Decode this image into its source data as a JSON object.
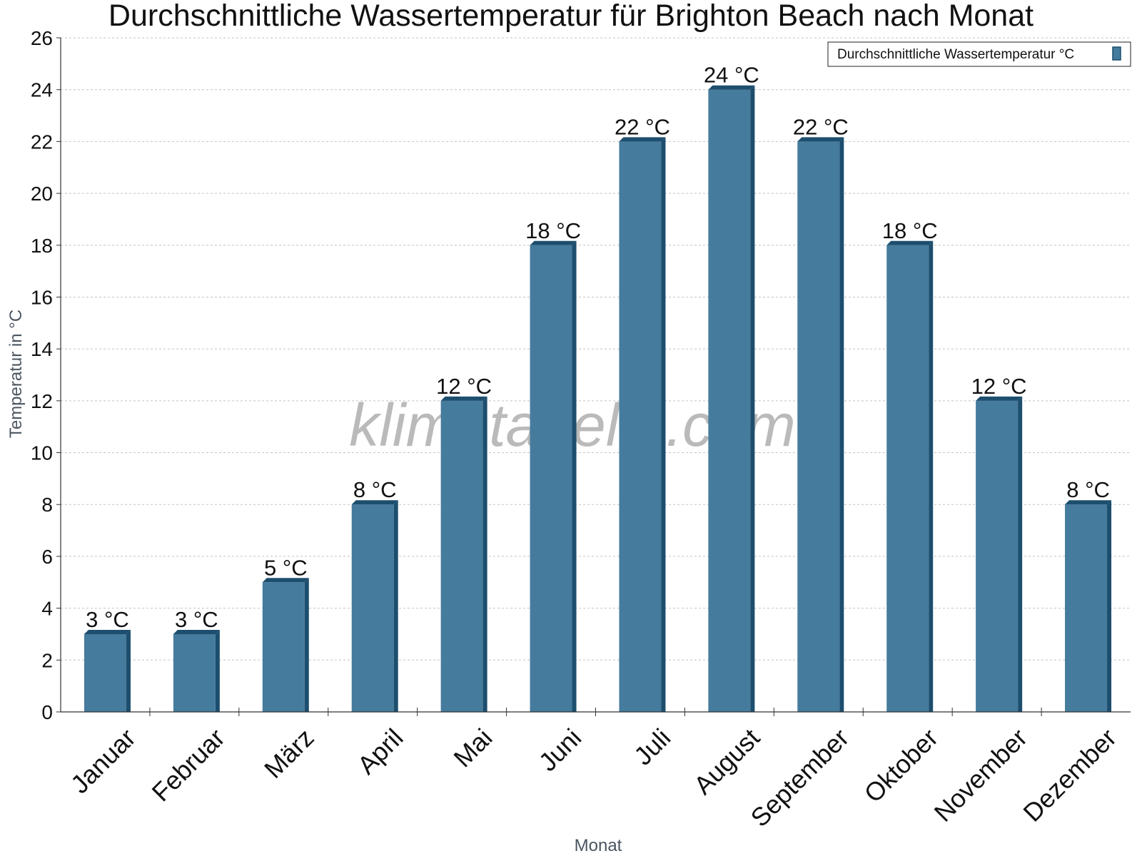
{
  "chart_data": {
    "type": "bar",
    "title": "Durchschnittliche Wassertemperatur für Brighton Beach nach Monat",
    "xlabel": "Monat",
    "ylabel": "Temperatur in °C",
    "categories": [
      "Januar",
      "Februar",
      "März",
      "April",
      "Mai",
      "Juni",
      "Juli",
      "August",
      "September",
      "Oktober",
      "November",
      "Dezember"
    ],
    "series": [
      {
        "name": "Durchschnittliche Wassertemperatur °C",
        "values": [
          3,
          3,
          5,
          8,
          12,
          18,
          22,
          24,
          22,
          18,
          12,
          8
        ],
        "labels": [
          "3 °C",
          "3 °C",
          "5 °C",
          "8 °C",
          "12 °C",
          "18 °C",
          "22 °C",
          "24 °C",
          "22 °C",
          "18 °C",
          "12 °C",
          "8 °C"
        ]
      }
    ],
    "ylim": [
      0,
      26
    ],
    "yticks": [
      0,
      2,
      4,
      6,
      8,
      10,
      12,
      14,
      16,
      18,
      20,
      22,
      24,
      26
    ],
    "grid": true,
    "legend_position": "top-right",
    "colors": {
      "bar": "#457b9d",
      "bar_dark": "#1d4e6e"
    }
  },
  "watermark": "klimatabelle.com"
}
